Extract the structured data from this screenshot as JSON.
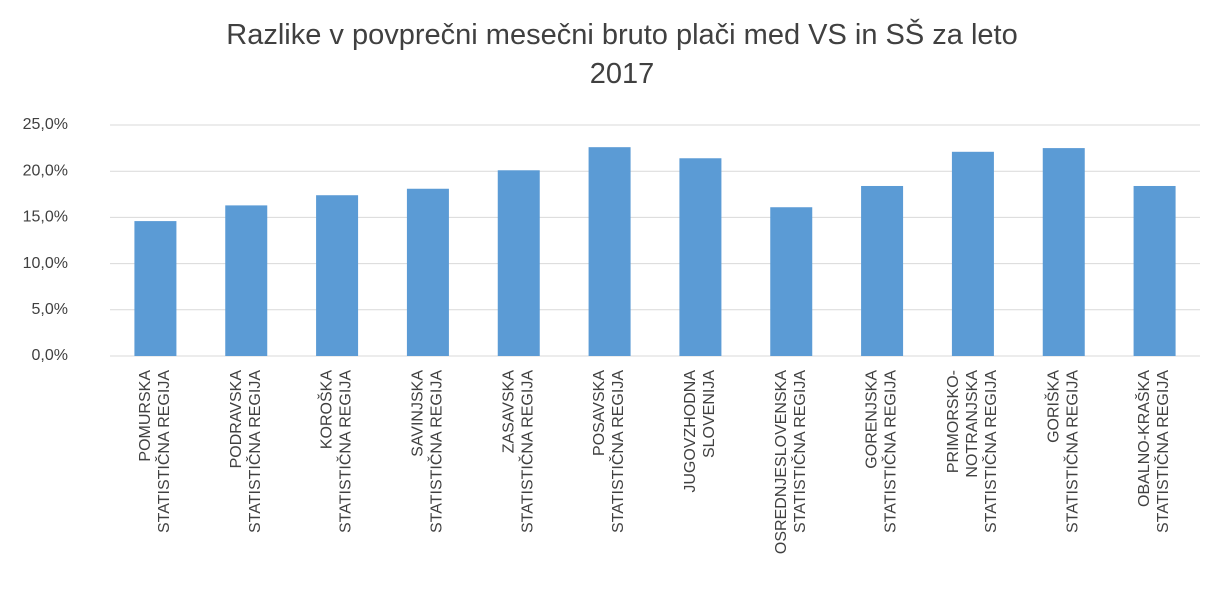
{
  "chart_data": {
    "type": "bar",
    "title": "Razlike v povprečni mesečni bruto plači med VS in SŠ za leto 2017",
    "categories": [
      "POMURSKA STATISTIČNA REGIJA",
      "PODRAVSKA STATISTIČNA REGIJA",
      "KOROŠKA STATISTIČNA REGIJA",
      "SAVINJSKA STATISTIČNA REGIJA",
      "ZASAVSKA STATISTIČNA REGIJA",
      "POSAVSKA STATISTIČNA REGIJA",
      "JUGOVZHODNA SLOVENIJA",
      "OSREDNJESLOVENSKA STATISTIČNA REGIJA",
      "GORENJSKA STATISTIČNA REGIJA",
      "PRIMORSKO-NOTRANJSKA STATISTIČNA REGIJA",
      "GORIŠKA STATISTIČNA REGIJA",
      "OBALNO-KRAŠKA STATISTIČNA REGIJA"
    ],
    "values": [
      14.6,
      16.3,
      17.4,
      18.1,
      20.1,
      22.6,
      21.4,
      16.1,
      18.4,
      22.1,
      22.5,
      18.4
    ],
    "color": "#5b9bd5",
    "ylim": [
      0,
      25
    ],
    "yticks": [
      {
        "value": 0,
        "label": "0,0%"
      },
      {
        "value": 5,
        "label": "5,0%"
      },
      {
        "value": 10,
        "label": "10,0%"
      },
      {
        "value": 15,
        "label": "15,0%"
      },
      {
        "value": 20,
        "label": "20,0%"
      },
      {
        "value": 25,
        "label": "25,0%"
      }
    ],
    "grid": true
  }
}
